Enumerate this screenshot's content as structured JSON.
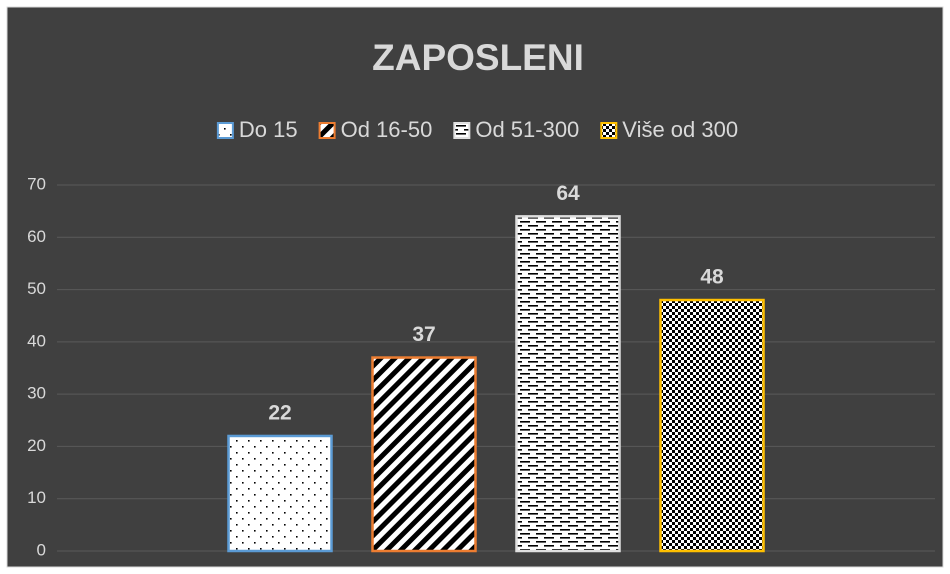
{
  "chart_data": {
    "type": "bar",
    "title": "ZAPOSLENI",
    "categories": [
      null
    ],
    "series": [
      {
        "name": "Do 15",
        "color": "#5b9bd5",
        "values": [
          22
        ]
      },
      {
        "name": "Od 16-50",
        "color": "#ed7d31",
        "values": [
          37
        ]
      },
      {
        "name": "Od 51-300",
        "color": "#e0e0e0",
        "values": [
          64
        ]
      },
      {
        "name": "Više od 300",
        "color": "#ffc000",
        "values": [
          48
        ]
      }
    ],
    "ylim": [
      0,
      70
    ],
    "yticks": [
      0,
      10,
      20,
      30,
      40,
      50,
      60,
      70
    ],
    "grid": true,
    "legend": "top"
  }
}
